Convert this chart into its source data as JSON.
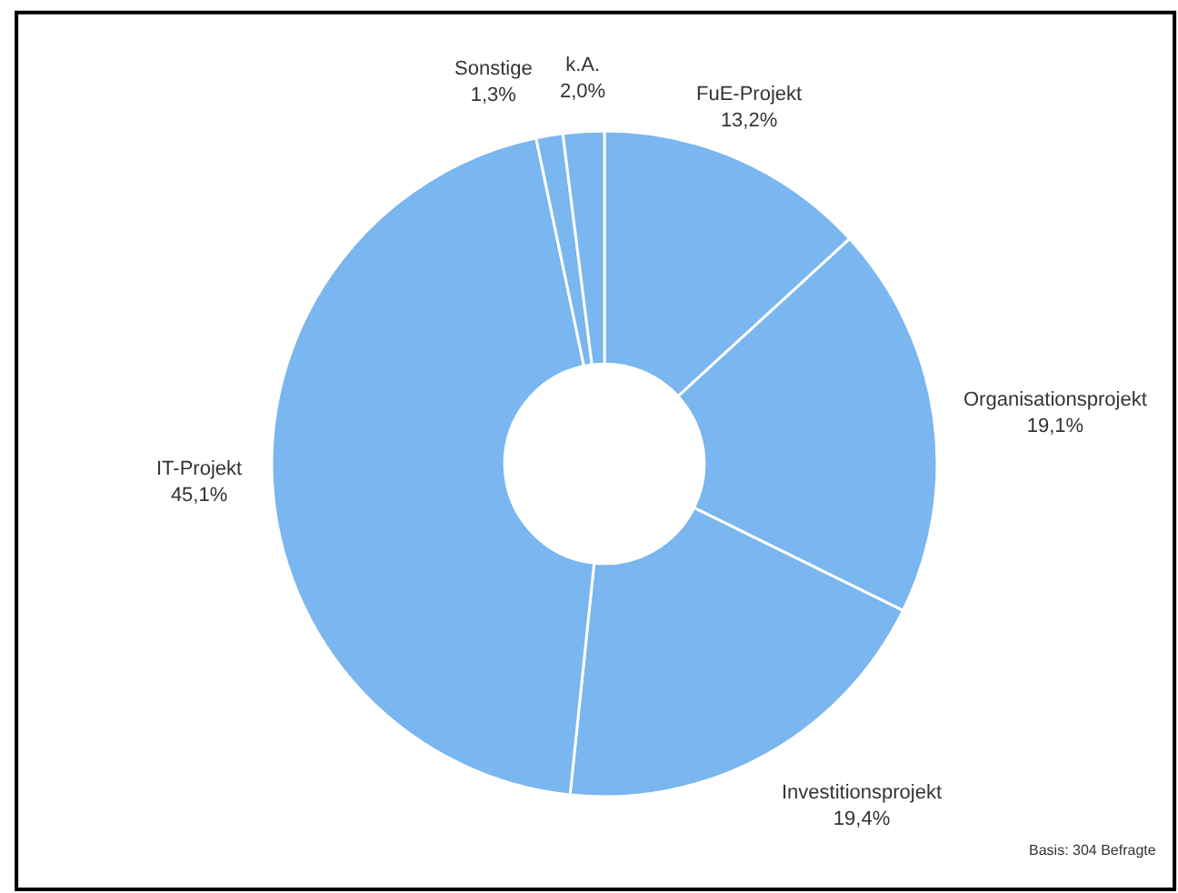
{
  "chart_data": {
    "type": "donut",
    "categories": [
      "FuE-Projekt",
      "Organisationsprojekt",
      "Investitionsprojekt",
      "IT-Projekt",
      "Sonstige",
      "k.A."
    ],
    "values": [
      13.2,
      19.1,
      19.4,
      45.1,
      1.3,
      2.0
    ],
    "value_labels": [
      "13,2%",
      "19,1%",
      "19,4%",
      "45,1%",
      "1,3%",
      "2,0%"
    ],
    "colors": [
      "#7ab6ef",
      "#7ab6ef",
      "#7ab6ef",
      "#7ab6ef",
      "#7ab6ef",
      "#7ab6ef"
    ],
    "legend": false,
    "annotations": [
      "Basis: 304 Befragte"
    ]
  }
}
